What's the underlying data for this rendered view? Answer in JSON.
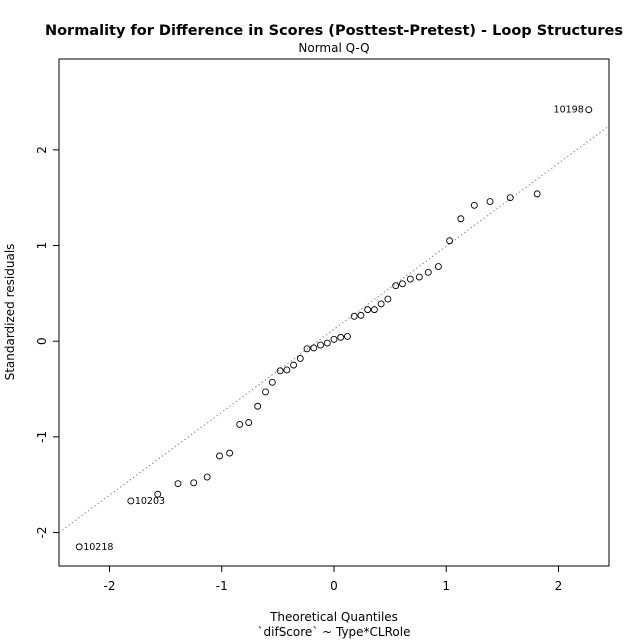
{
  "chart_data": {
    "type": "scatter",
    "title": "Normality for Difference in Scores (Posttest-Pretest) - Loop Structures",
    "subtitle": "Normal Q-Q",
    "xlabel": "Theoretical Quantiles",
    "xlabel2": "`difScore` ~ Type*CLRole",
    "ylabel": "Standardized residuals",
    "xlim": [
      -2.45,
      2.45
    ],
    "ylim": [
      -2.35,
      2.95
    ],
    "xticks": [
      "-2",
      "-1",
      "0",
      "1",
      "2"
    ],
    "yticks": [
      "-2",
      "-1",
      "0",
      "1",
      "2"
    ],
    "grid": false,
    "reference_line": {
      "style": "dotted",
      "x": [
        -2.45,
        2.45
      ],
      "y": [
        -2.0,
        2.25
      ]
    },
    "points": [
      {
        "x": -2.27,
        "y": -2.15,
        "label": "10218"
      },
      {
        "x": -1.81,
        "y": -1.67,
        "label": "10203"
      },
      {
        "x": -1.57,
        "y": -1.6
      },
      {
        "x": -1.39,
        "y": -1.49
      },
      {
        "x": -1.25,
        "y": -1.48
      },
      {
        "x": -1.13,
        "y": -1.42
      },
      {
        "x": -1.02,
        "y": -1.2
      },
      {
        "x": -0.93,
        "y": -1.17
      },
      {
        "x": -0.84,
        "y": -0.87
      },
      {
        "x": -0.76,
        "y": -0.85
      },
      {
        "x": -0.68,
        "y": -0.68
      },
      {
        "x": -0.61,
        "y": -0.53
      },
      {
        "x": -0.55,
        "y": -0.43
      },
      {
        "x": -0.48,
        "y": -0.31
      },
      {
        "x": -0.42,
        "y": -0.3
      },
      {
        "x": -0.36,
        "y": -0.25
      },
      {
        "x": -0.3,
        "y": -0.18
      },
      {
        "x": -0.24,
        "y": -0.08
      },
      {
        "x": -0.18,
        "y": -0.07
      },
      {
        "x": -0.12,
        "y": -0.04
      },
      {
        "x": -0.06,
        "y": -0.02
      },
      {
        "x": 0.0,
        "y": 0.02
      },
      {
        "x": 0.06,
        "y": 0.04
      },
      {
        "x": 0.12,
        "y": 0.05
      },
      {
        "x": 0.18,
        "y": 0.26
      },
      {
        "x": 0.24,
        "y": 0.27
      },
      {
        "x": 0.3,
        "y": 0.33
      },
      {
        "x": 0.36,
        "y": 0.33
      },
      {
        "x": 0.42,
        "y": 0.39
      },
      {
        "x": 0.48,
        "y": 0.44
      },
      {
        "x": 0.55,
        "y": 0.58
      },
      {
        "x": 0.61,
        "y": 0.6
      },
      {
        "x": 0.68,
        "y": 0.65
      },
      {
        "x": 0.76,
        "y": 0.67
      },
      {
        "x": 0.84,
        "y": 0.72
      },
      {
        "x": 0.93,
        "y": 0.78
      },
      {
        "x": 1.03,
        "y": 1.05
      },
      {
        "x": 1.13,
        "y": 1.28
      },
      {
        "x": 1.25,
        "y": 1.42
      },
      {
        "x": 1.39,
        "y": 1.46
      },
      {
        "x": 1.57,
        "y": 1.5
      },
      {
        "x": 1.81,
        "y": 1.54
      },
      {
        "x": 2.27,
        "y": 2.42,
        "label": "10198"
      }
    ]
  }
}
